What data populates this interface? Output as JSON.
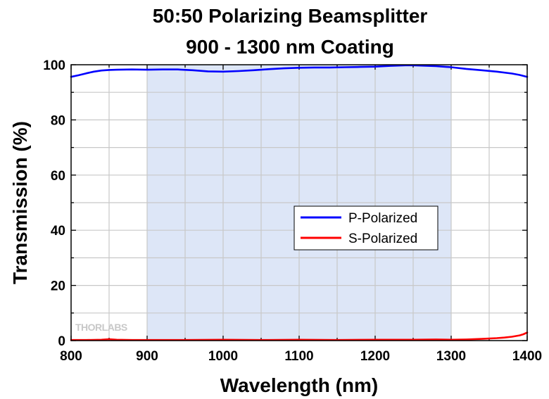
{
  "chart_data": {
    "type": "line",
    "title": [
      "50:50 Polarizing Beamsplitter",
      "900 - 1300 nm Coating"
    ],
    "xlabel": "Wavelength (nm)",
    "ylabel": "Transmission (%)",
    "xlim": [
      800,
      1400
    ],
    "ylim": [
      0,
      100
    ],
    "xticks": [
      800,
      900,
      1000,
      1100,
      1200,
      1300,
      1400
    ],
    "yticks": [
      0,
      20,
      40,
      60,
      80,
      100
    ],
    "grid": true,
    "shaded_region": [
      900,
      1300
    ],
    "legend_position": "center-right",
    "series": [
      {
        "name": "P-Polarized",
        "color": "#0000ff",
        "x": [
          800,
          810,
          820,
          830,
          840,
          850,
          860,
          880,
          900,
          920,
          940,
          960,
          980,
          1000,
          1020,
          1040,
          1060,
          1080,
          1100,
          1120,
          1140,
          1160,
          1180,
          1200,
          1220,
          1240,
          1250,
          1260,
          1280,
          1300,
          1320,
          1340,
          1360,
          1380,
          1390,
          1400
        ],
        "y": [
          95.6,
          96.2,
          96.9,
          97.5,
          97.9,
          98.1,
          98.2,
          98.3,
          98.2,
          98.3,
          98.3,
          98.0,
          97.6,
          97.5,
          97.7,
          98.0,
          98.4,
          98.7,
          98.9,
          99.0,
          99.0,
          99.1,
          99.2,
          99.3,
          99.6,
          99.8,
          99.8,
          99.7,
          99.5,
          99.1,
          98.5,
          98.0,
          97.5,
          96.8,
          96.3,
          95.6
        ]
      },
      {
        "name": "S-Polarized",
        "color": "#ff0000",
        "x": [
          800,
          820,
          840,
          850,
          860,
          880,
          900,
          950,
          1000,
          1050,
          1100,
          1150,
          1200,
          1250,
          1280,
          1300,
          1320,
          1340,
          1360,
          1370,
          1380,
          1390,
          1395,
          1400
        ],
        "y": [
          0.2,
          0.2,
          0.3,
          0.5,
          0.3,
          0.2,
          0.2,
          0.2,
          0.3,
          0.2,
          0.3,
          0.2,
          0.3,
          0.3,
          0.4,
          0.3,
          0.4,
          0.6,
          0.9,
          1.1,
          1.4,
          1.9,
          2.3,
          2.9
        ]
      }
    ]
  },
  "watermark": "THORLABS"
}
